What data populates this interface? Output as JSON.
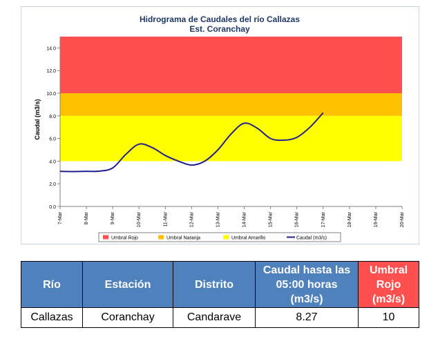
{
  "chart_data": {
    "type": "line",
    "title": "Hidrograma de Caudales del río Callazas",
    "subtitle": "Est. Coranchay",
    "xlabel": "",
    "ylabel": "Caudal (m3/s)",
    "ylim": [
      0,
      15
    ],
    "yticks": [
      "0.0",
      "2.0",
      "4.0",
      "6.0",
      "8.0",
      "10.0",
      "12.0",
      "14.0"
    ],
    "categories": [
      "7-Mar",
      "8-Mar",
      "9-Mar",
      "10-Mar",
      "11-Mar",
      "12-Mar",
      "13-Mar",
      "14-Mar",
      "15-Mar",
      "16-Mar",
      "17-Mar",
      "18-Mar",
      "19-Mar",
      "20-Mar"
    ],
    "grid": false,
    "legend_position": "bottom",
    "thresholds": [
      {
        "name": "Umbral Rojo",
        "from": 10,
        "to": 15,
        "color": "#ff5050"
      },
      {
        "name": "Umbral Naranja",
        "from": 8,
        "to": 10,
        "color": "#ffc000"
      },
      {
        "name": "Umbral Amarillo",
        "from": 4,
        "to": 8,
        "color": "#ffff00"
      }
    ],
    "series": [
      {
        "name": "Caudal (m3/s)",
        "color": "#1f1f8f",
        "x": [
          0,
          0.5,
          1,
          1.5,
          2,
          2.5,
          3,
          3.5,
          4,
          4.5,
          5,
          5.5,
          6,
          6.5,
          7,
          7.5,
          8,
          8.5,
          9,
          9.5,
          10
        ],
        "values": [
          3.1,
          3.08,
          3.1,
          3.12,
          3.4,
          4.6,
          5.5,
          5.2,
          4.5,
          4.0,
          3.65,
          4.0,
          5.0,
          6.4,
          7.35,
          6.9,
          6.0,
          5.85,
          6.1,
          7.0,
          8.27
        ]
      }
    ]
  },
  "table": {
    "headers": [
      "Río",
      "Estación",
      "Distrito",
      "Caudal hasta las 05:00 horas (m3/s)",
      "Umbral  Rojo (m3/s)"
    ],
    "row": [
      "Callazas",
      "Coranchay",
      "Candarave",
      "8.27",
      "10"
    ]
  }
}
